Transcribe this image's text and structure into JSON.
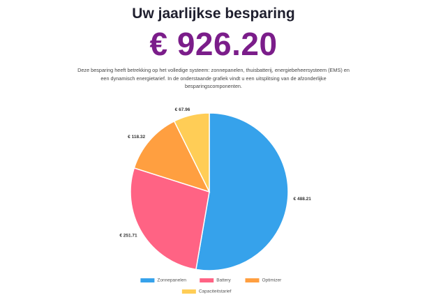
{
  "header": {
    "title": "Uw jaarlijkse besparing",
    "amount": "€ 926.20",
    "description": "Deze besparing heeft betrekking op het volledige systeem: zonnepanelen, thuisbatterij, energiebeheersysteem (EMS) en een dynamisch energietarief. In de onderstaande grafiek vindt u een uitsplitsing van de afzonderlijke besparingscomponenten."
  },
  "chart_data": {
    "type": "pie",
    "categories": [
      "Zonnepanelen",
      "Battery",
      "Optimizer",
      "Capaciteitstarief"
    ],
    "values": [
      488.21,
      251.71,
      118.32,
      67.96
    ],
    "data_labels": [
      "€ 488.21",
      "€ 251.71",
      "€ 118.32",
      "€ 67.96"
    ],
    "colors": [
      "#36a2eb",
      "#ff6384",
      "#ff9f40",
      "#ffcd56"
    ],
    "legend_position": "bottom"
  }
}
